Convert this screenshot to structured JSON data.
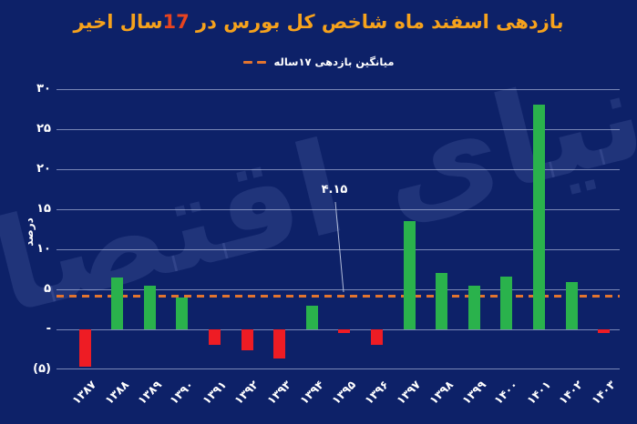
{
  "title": {
    "part_a": "بازدهی اسفند ماه شاخص کل بورس در ",
    "number": "17",
    "part_b": "سال اخیر"
  },
  "legend": {
    "label": "میانگین بازدهی ۱۷ساله"
  },
  "watermark": "دنیای اقتصاد",
  "chart_data": {
    "type": "bar",
    "title": "بازدهی اسفند ماه شاخص کل بورس در 17سال اخیر",
    "categories": [
      "۱۳۸۷",
      "۱۳۸۸",
      "۱۳۸۹",
      "۱۳۹۰",
      "۱۳۹۱",
      "۱۳۹۲",
      "۱۳۹۳",
      "۱۳۹۴",
      "۱۳۹۵",
      "۱۳۹۶",
      "۱۳۹۷",
      "۱۳۹۸",
      "۱۳۹۹",
      "۱۴۰۰",
      "۱۴۰۱",
      "۱۴۰۲",
      "۱۴۰۳"
    ],
    "values": [
      -4.7,
      6.5,
      5.5,
      4.0,
      -1.9,
      -2.6,
      -3.6,
      3.0,
      -0.5,
      -1.9,
      13.5,
      7.1,
      5.5,
      6.6,
      28.1,
      5.9,
      -0.5
    ],
    "ylabel": "درصد",
    "xlabel": "",
    "ylim": [
      -5,
      30
    ],
    "grid": true,
    "y_ticks": [
      {
        "value": 30,
        "label": "۳۰"
      },
      {
        "value": 25,
        "label": "۲۵"
      },
      {
        "value": 20,
        "label": "۲۰"
      },
      {
        "value": 15,
        "label": "۱۵"
      },
      {
        "value": 10,
        "label": "۱۰"
      },
      {
        "value": 5,
        "label": "۵"
      },
      {
        "value": 0,
        "label": "-"
      },
      {
        "value": -5,
        "label": "(۵)"
      }
    ],
    "average_line": {
      "value": 4.15,
      "label": "۴.۱۵",
      "legend": "میانگین بازدهی ۱۷ساله",
      "color": "#e2742f"
    },
    "colors": {
      "positive": "#2ab24c",
      "negative": "#ee1c24",
      "background": "#0d2168",
      "title": "#f6a21c",
      "title_number": "#e8441f",
      "gridline": "rgba(213,222,248,0.55)"
    },
    "legend_position": "top"
  }
}
